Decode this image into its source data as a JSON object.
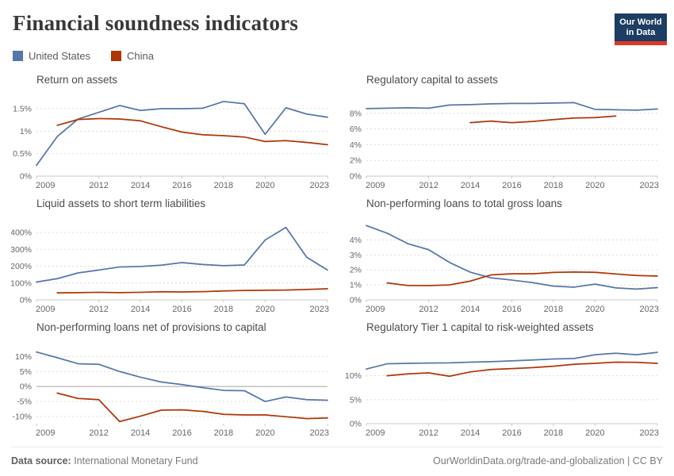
{
  "page": {
    "title": "Financial soundness indicators",
    "logo": {
      "line1": "Our World",
      "line2": "in Data"
    },
    "footer": {
      "source_label": "Data source:",
      "source_value": " International Monetary Fund",
      "credit": "OurWorldinData.org/trade-and-globalization | CC BY"
    }
  },
  "colors": {
    "us_blue": "#5676a8",
    "china_red": "#b13507",
    "logo_navy": "#1d3d63",
    "logo_red": "#dd3726"
  },
  "legend": {
    "items": [
      {
        "label": "United States",
        "color": "#5676a8"
      },
      {
        "label": "China",
        "color": "#b13507"
      }
    ]
  },
  "chart_data": [
    {
      "type": "line",
      "title": "Return on assets",
      "xlim": [
        2009,
        2023
      ],
      "xticks": [
        2009,
        2012,
        2014,
        2016,
        2018,
        2020,
        2023
      ],
      "ylim": [
        0,
        1.8
      ],
      "yticks": [
        0,
        0.5,
        1,
        1.5
      ],
      "ytick_labels": [
        "0%",
        "0.5%",
        "1%",
        "1.5%"
      ],
      "series": [
        {
          "name": "United States",
          "color": "#5676a8",
          "start_year": 2009,
          "values": [
            0.24,
            0.88,
            1.27,
            1.42,
            1.57,
            1.46,
            1.5,
            1.5,
            1.51,
            1.66,
            1.61,
            0.93,
            1.52,
            1.38,
            1.31
          ]
        },
        {
          "name": "China",
          "color": "#b13507",
          "start_year": 2010,
          "values": [
            1.13,
            1.26,
            1.28,
            1.27,
            1.23,
            1.1,
            0.98,
            0.92,
            0.9,
            0.87,
            0.77,
            0.79,
            0.75,
            0.7
          ]
        }
      ]
    },
    {
      "type": "line",
      "title": "Regulatory capital to assets",
      "xlim": [
        2009,
        2023
      ],
      "xticks": [
        2009,
        2012,
        2014,
        2016,
        2018,
        2020,
        2023
      ],
      "ylim": [
        0,
        10.3
      ],
      "yticks": [
        0,
        2,
        4,
        6,
        8
      ],
      "ytick_labels": [
        "0%",
        "2%",
        "4%",
        "6%",
        "8%"
      ],
      "series": [
        {
          "name": "United States",
          "color": "#5676a8",
          "start_year": 2009,
          "values": [
            8.6,
            8.65,
            8.7,
            8.65,
            9.05,
            9.1,
            9.2,
            9.25,
            9.25,
            9.3,
            9.35,
            8.5,
            8.45,
            8.4,
            8.55
          ]
        },
        {
          "name": "China",
          "color": "#b13507",
          "start_year": 2014,
          "values": [
            6.8,
            7.0,
            6.8,
            6.95,
            7.2,
            7.4,
            7.45,
            7.65
          ]
        }
      ]
    },
    {
      "type": "line",
      "title": "Liquid assets to short term liabilities",
      "xlim": [
        2009,
        2023
      ],
      "xticks": [
        2009,
        2012,
        2014,
        2016,
        2018,
        2020,
        2023
      ],
      "ylim": [
        0,
        480
      ],
      "yticks": [
        0,
        100,
        200,
        300,
        400
      ],
      "ytick_labels": [
        "0%",
        "100%",
        "200%",
        "300%",
        "400%"
      ],
      "series": [
        {
          "name": "United States",
          "color": "#5676a8",
          "start_year": 2009,
          "values": [
            106,
            126,
            160,
            177,
            195,
            198,
            206,
            221,
            210,
            203,
            207,
            355,
            430,
            253,
            177
          ]
        },
        {
          "name": "China",
          "color": "#b13507",
          "start_year": 2010,
          "values": [
            42,
            43,
            45,
            43,
            45,
            48,
            47,
            49,
            53,
            56,
            57,
            58,
            62,
            66
          ]
        }
      ]
    },
    {
      "type": "line",
      "title": "Non-performing loans to total gross loans",
      "xlim": [
        2009,
        2023
      ],
      "xticks": [
        2009,
        2012,
        2014,
        2016,
        2018,
        2020,
        2023
      ],
      "ylim": [
        0,
        5.4
      ],
      "yticks": [
        0,
        1,
        2,
        3,
        4
      ],
      "ytick_labels": [
        "0%",
        "1%",
        "2%",
        "3%",
        "4%"
      ],
      "series": [
        {
          "name": "United States",
          "color": "#5676a8",
          "start_year": 2009,
          "values": [
            4.96,
            4.45,
            3.75,
            3.35,
            2.5,
            1.85,
            1.47,
            1.32,
            1.15,
            0.92,
            0.85,
            1.05,
            0.8,
            0.72,
            0.82
          ]
        },
        {
          "name": "China",
          "color": "#b13507",
          "start_year": 2010,
          "values": [
            1.13,
            0.96,
            0.95,
            1.0,
            1.25,
            1.67,
            1.74,
            1.74,
            1.83,
            1.86,
            1.84,
            1.73,
            1.63,
            1.59
          ]
        }
      ]
    },
    {
      "type": "line",
      "title": "Non-performing loans net of provisions to capital",
      "xlim": [
        2009,
        2023
      ],
      "xticks": [
        2009,
        2012,
        2014,
        2016,
        2018,
        2020,
        2023
      ],
      "ylim": [
        -12.4,
        14.6
      ],
      "yticks": [
        -10,
        -5,
        0,
        5,
        10
      ],
      "ytick_labels": [
        "-10%",
        "-5%",
        "0%",
        "5%",
        "10%"
      ],
      "series": [
        {
          "name": "United States",
          "color": "#5676a8",
          "start_year": 2009,
          "values": [
            11.5,
            9.6,
            7.6,
            7.4,
            5.0,
            3.1,
            1.5,
            0.65,
            -0.4,
            -1.3,
            -1.4,
            -5.0,
            -3.5,
            -4.4,
            -4.6
          ]
        },
        {
          "name": "China",
          "color": "#b13507",
          "start_year": 2010,
          "values": [
            -2.2,
            -4.0,
            -4.4,
            -11.7,
            -9.9,
            -7.9,
            -7.8,
            -8.3,
            -9.3,
            -9.5,
            -9.5,
            -10.1,
            -10.7,
            -10.5
          ]
        }
      ]
    },
    {
      "type": "line",
      "title": "Regulatory Tier 1 capital to risk-weighted assets",
      "xlim": [
        2009,
        2023
      ],
      "xticks": [
        2009,
        2012,
        2014,
        2016,
        2018,
        2020,
        2023
      ],
      "ylim": [
        0,
        16.9
      ],
      "yticks": [
        0,
        5,
        10
      ],
      "ytick_labels": [
        "0%",
        "5%",
        "10%"
      ],
      "series": [
        {
          "name": "United States",
          "color": "#5676a8",
          "start_year": 2009,
          "values": [
            11.4,
            12.5,
            12.6,
            12.65,
            12.7,
            12.85,
            12.95,
            13.1,
            13.3,
            13.5,
            13.6,
            14.4,
            14.7,
            14.4,
            14.9
          ]
        },
        {
          "name": "China",
          "color": "#b13507",
          "start_year": 2010,
          "values": [
            10.0,
            10.4,
            10.6,
            9.9,
            10.8,
            11.3,
            11.5,
            11.7,
            12.0,
            12.4,
            12.6,
            12.85,
            12.8,
            12.6
          ]
        }
      ]
    }
  ]
}
